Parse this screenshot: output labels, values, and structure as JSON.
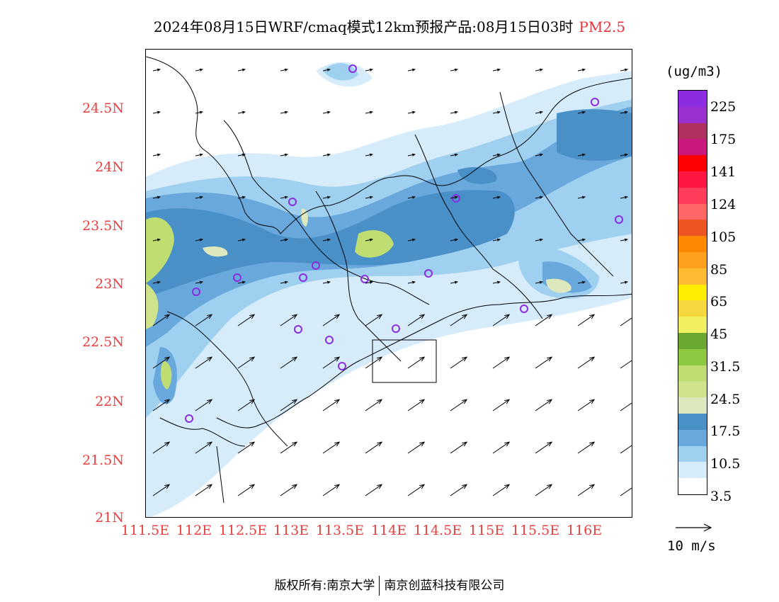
{
  "title": {
    "main": "2024年08月15日WRF/cmaq模式12km预报产品:08月15日03时",
    "pollutant": "PM2.5"
  },
  "map": {
    "lon_range": [
      111.5,
      116.5
    ],
    "lat_range": [
      21.0,
      25.0
    ],
    "y_ticks": [
      "24.5N",
      "24N",
      "23.5N",
      "23N",
      "22.5N",
      "22N",
      "21.5N",
      "21N"
    ],
    "x_ticks": [
      "111.5E",
      "112E",
      "112.5E",
      "113E",
      "113.5E",
      "114E",
      "114.5E",
      "115E",
      "115.5E",
      "116E"
    ]
  },
  "colorbar": {
    "units": "(ug/m3)",
    "colors": [
      "#8b2be2",
      "#9b30d0",
      "#b03060",
      "#c8187d",
      "#ff0000",
      "#ff1744",
      "#ff3d5a",
      "#ff6666",
      "#ee5522",
      "#ff8800",
      "#ffa020",
      "#ffbb33",
      "#ffee00",
      "#f5d840",
      "#f0f060",
      "#6aa830",
      "#8cc840",
      "#bfdd70",
      "#cfe38a",
      "#dde9bd",
      "#4a90c8",
      "#69a8dc",
      "#9fd0f0",
      "#d6ecfa",
      "#ffffff"
    ],
    "labels": [
      "225",
      "175",
      "141",
      "124",
      "105",
      "85",
      "65",
      "45",
      "31.5",
      "24.5",
      "17.5",
      "10.5",
      "3.5"
    ]
  },
  "wind_reference": {
    "label": "10 m/s"
  },
  "footer": {
    "left": "版权所有:南京大学",
    "right": "南京创蓝科技有限公司"
  }
}
